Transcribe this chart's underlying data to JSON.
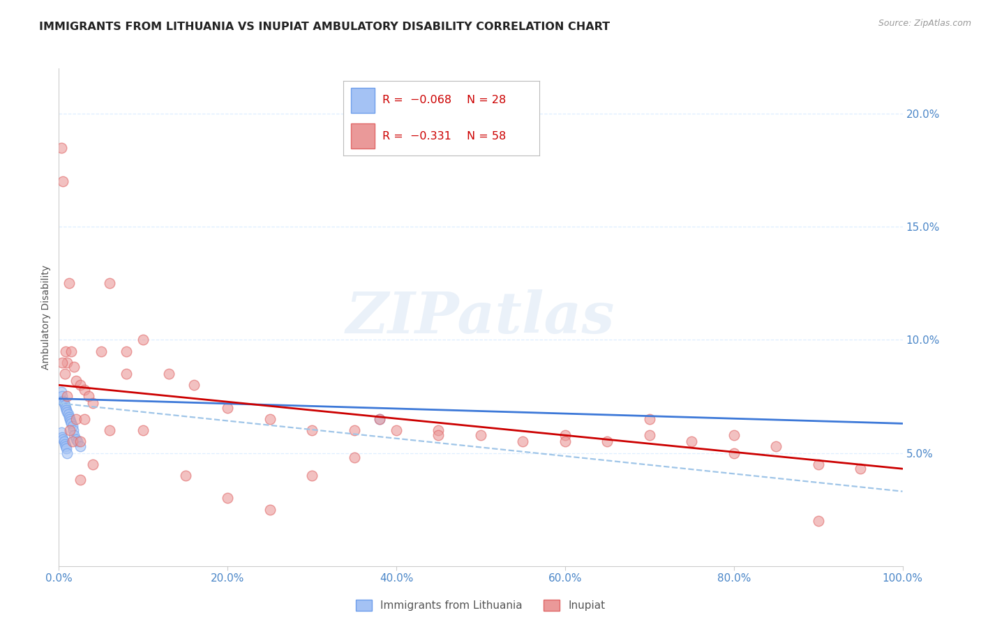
{
  "title": "IMMIGRANTS FROM LITHUANIA VS INUPIAT AMBULATORY DISABILITY CORRELATION CHART",
  "source": "Source: ZipAtlas.com",
  "ylabel": "Ambulatory Disability",
  "xlim": [
    0.0,
    1.0
  ],
  "ylim": [
    0.0,
    0.22
  ],
  "x_ticks": [
    0.0,
    0.2,
    0.4,
    0.6,
    0.8,
    1.0
  ],
  "x_tick_labels": [
    "0.0%",
    "20.0%",
    "40.0%",
    "60.0%",
    "80.0%",
    "100.0%"
  ],
  "y_ticks": [
    0.05,
    0.1,
    0.15,
    0.2
  ],
  "y_tick_labels": [
    "5.0%",
    "10.0%",
    "15.0%",
    "20.0%"
  ],
  "legend_R_blue": "−0.068",
  "legend_N_blue": "28",
  "legend_R_pink": "−0.331",
  "legend_N_pink": "58",
  "blue_face_color": "#a4c2f4",
  "blue_edge_color": "#6d9eeb",
  "pink_face_color": "#ea9999",
  "pink_edge_color": "#e06666",
  "blue_line_color": "#3c78d8",
  "pink_line_color": "#cc0000",
  "dashed_line_color": "#9fc5e8",
  "watermark": "ZIPatlas",
  "blue_scatter_x": [
    0.003,
    0.004,
    0.005,
    0.006,
    0.007,
    0.008,
    0.009,
    0.01,
    0.011,
    0.012,
    0.013,
    0.014,
    0.015,
    0.016,
    0.017,
    0.018,
    0.02,
    0.022,
    0.025,
    0.003,
    0.004,
    0.005,
    0.006,
    0.007,
    0.008,
    0.009,
    0.01,
    0.38
  ],
  "blue_scatter_y": [
    0.077,
    0.075,
    0.073,
    0.072,
    0.071,
    0.07,
    0.069,
    0.068,
    0.067,
    0.066,
    0.065,
    0.064,
    0.063,
    0.062,
    0.06,
    0.058,
    0.056,
    0.055,
    0.053,
    0.059,
    0.057,
    0.056,
    0.055,
    0.054,
    0.053,
    0.052,
    0.05,
    0.065
  ],
  "pink_scatter_x": [
    0.003,
    0.005,
    0.008,
    0.01,
    0.012,
    0.015,
    0.018,
    0.02,
    0.025,
    0.03,
    0.035,
    0.04,
    0.05,
    0.06,
    0.08,
    0.1,
    0.13,
    0.16,
    0.2,
    0.25,
    0.3,
    0.35,
    0.4,
    0.45,
    0.5,
    0.55,
    0.6,
    0.65,
    0.7,
    0.75,
    0.8,
    0.85,
    0.9,
    0.95,
    0.004,
    0.007,
    0.01,
    0.013,
    0.016,
    0.02,
    0.025,
    0.03,
    0.04,
    0.06,
    0.08,
    0.1,
    0.15,
    0.2,
    0.25,
    0.3,
    0.38,
    0.45,
    0.6,
    0.7,
    0.8,
    0.9,
    0.025,
    0.35
  ],
  "pink_scatter_y": [
    0.185,
    0.17,
    0.095,
    0.09,
    0.125,
    0.095,
    0.088,
    0.082,
    0.08,
    0.078,
    0.075,
    0.072,
    0.095,
    0.125,
    0.085,
    0.1,
    0.085,
    0.08,
    0.07,
    0.065,
    0.06,
    0.06,
    0.06,
    0.06,
    0.058,
    0.055,
    0.058,
    0.055,
    0.058,
    0.055,
    0.058,
    0.053,
    0.045,
    0.043,
    0.09,
    0.085,
    0.075,
    0.06,
    0.055,
    0.065,
    0.055,
    0.065,
    0.045,
    0.06,
    0.095,
    0.06,
    0.04,
    0.03,
    0.025,
    0.04,
    0.065,
    0.058,
    0.055,
    0.065,
    0.05,
    0.02,
    0.038,
    0.048
  ],
  "blue_trend": [
    0.074,
    0.063
  ],
  "pink_trend": [
    0.08,
    0.043
  ],
  "dashed_trend": [
    0.072,
    0.033
  ],
  "background_color": "#ffffff",
  "grid_color": "#ddeeff",
  "title_color": "#222222",
  "axis_label_color": "#555555",
  "tick_color": "#4a86c8",
  "source_color": "#999999"
}
